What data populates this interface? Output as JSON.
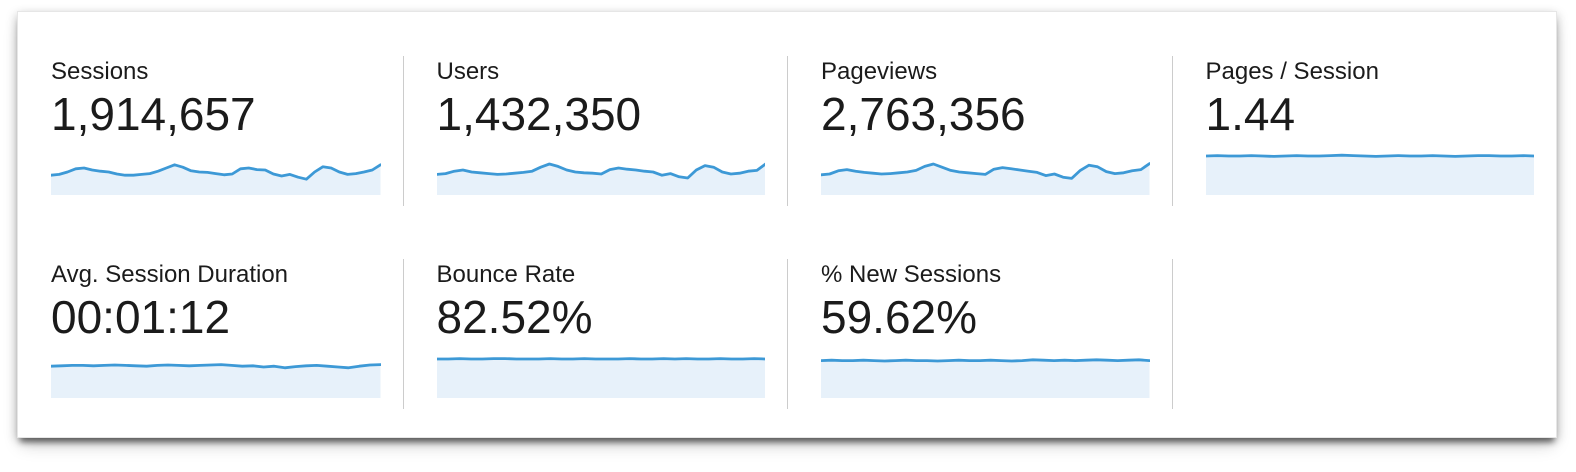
{
  "card": {
    "colors": {
      "spark_line": "#3D99D6",
      "spark_fill": "#E7F1FA",
      "divider": "#CCCCCC",
      "text": "#1B1B1B"
    },
    "metrics": [
      {
        "label": "Sessions",
        "value": "1,914,657",
        "spark": [
          0.42,
          0.44,
          0.5,
          0.58,
          0.6,
          0.55,
          0.52,
          0.5,
          0.45,
          0.42,
          0.42,
          0.44,
          0.46,
          0.52,
          0.6,
          0.68,
          0.62,
          0.53,
          0.5,
          0.49,
          0.46,
          0.43,
          0.45,
          0.58,
          0.6,
          0.56,
          0.55,
          0.45,
          0.4,
          0.44,
          0.37,
          0.32,
          0.5,
          0.63,
          0.6,
          0.5,
          0.44,
          0.46,
          0.5,
          0.55,
          0.68
        ]
      },
      {
        "label": "Users",
        "value": "1,432,350",
        "spark": [
          0.44,
          0.46,
          0.52,
          0.55,
          0.5,
          0.48,
          0.46,
          0.44,
          0.45,
          0.47,
          0.49,
          0.52,
          0.62,
          0.7,
          0.64,
          0.55,
          0.5,
          0.48,
          0.47,
          0.45,
          0.56,
          0.6,
          0.57,
          0.55,
          0.52,
          0.5,
          0.42,
          0.46,
          0.38,
          0.35,
          0.55,
          0.66,
          0.62,
          0.5,
          0.45,
          0.47,
          0.52,
          0.54,
          0.7
        ]
      },
      {
        "label": "Pageviews",
        "value": "2,763,356",
        "spark": [
          0.43,
          0.45,
          0.53,
          0.56,
          0.52,
          0.49,
          0.47,
          0.45,
          0.46,
          0.48,
          0.5,
          0.54,
          0.64,
          0.7,
          0.62,
          0.54,
          0.5,
          0.48,
          0.46,
          0.44,
          0.57,
          0.61,
          0.58,
          0.55,
          0.52,
          0.49,
          0.41,
          0.45,
          0.37,
          0.34,
          0.54,
          0.67,
          0.63,
          0.51,
          0.46,
          0.48,
          0.53,
          0.56,
          0.71
        ]
      },
      {
        "label": "Pages / Session",
        "value": "1.44",
        "spark": [
          0.9,
          0.91,
          0.9,
          0.9,
          0.91,
          0.9,
          0.89,
          0.9,
          0.91,
          0.9,
          0.9,
          0.91,
          0.92,
          0.91,
          0.9,
          0.89,
          0.9,
          0.91,
          0.9,
          0.9,
          0.91,
          0.9,
          0.89,
          0.9,
          0.91,
          0.91,
          0.9,
          0.9,
          0.91,
          0.9
        ]
      },
      {
        "label": "Avg. Session Duration",
        "value": "00:01:12",
        "spark": [
          0.72,
          0.73,
          0.74,
          0.74,
          0.73,
          0.74,
          0.75,
          0.74,
          0.73,
          0.72,
          0.74,
          0.75,
          0.74,
          0.73,
          0.74,
          0.75,
          0.76,
          0.74,
          0.72,
          0.73,
          0.7,
          0.72,
          0.68,
          0.71,
          0.73,
          0.74,
          0.72,
          0.7,
          0.68,
          0.72,
          0.75,
          0.76
        ]
      },
      {
        "label": "Bounce Rate",
        "value": "82.52%",
        "spark": [
          0.9,
          0.9,
          0.91,
          0.9,
          0.9,
          0.91,
          0.91,
          0.9,
          0.9,
          0.9,
          0.91,
          0.9,
          0.9,
          0.91,
          0.9,
          0.9,
          0.9,
          0.91,
          0.9,
          0.9,
          0.91,
          0.9,
          0.91,
          0.9,
          0.9,
          0.91,
          0.9,
          0.9,
          0.91,
          0.9
        ]
      },
      {
        "label": "% New Sessions",
        "value": "59.62%",
        "spark": [
          0.86,
          0.87,
          0.86,
          0.86,
          0.87,
          0.86,
          0.85,
          0.86,
          0.87,
          0.86,
          0.86,
          0.85,
          0.86,
          0.87,
          0.86,
          0.86,
          0.87,
          0.86,
          0.85,
          0.86,
          0.88,
          0.87,
          0.86,
          0.87,
          0.86,
          0.87,
          0.88,
          0.87,
          0.86,
          0.87,
          0.88,
          0.86
        ]
      }
    ]
  },
  "chart_data": [
    {
      "type": "area",
      "title": "Sessions sparkline",
      "series": [
        {
          "name": "Sessions",
          "values": "normalized trend, see card.metrics.0.spark"
        }
      ],
      "legend_position": "none",
      "grid": false
    },
    {
      "type": "area",
      "title": "Users sparkline",
      "series": [
        {
          "name": "Users",
          "values": "normalized trend, see card.metrics.1.spark"
        }
      ],
      "legend_position": "none",
      "grid": false
    },
    {
      "type": "area",
      "title": "Pageviews sparkline",
      "series": [
        {
          "name": "Pageviews",
          "values": "normalized trend, see card.metrics.2.spark"
        }
      ],
      "legend_position": "none",
      "grid": false
    },
    {
      "type": "area",
      "title": "Pages / Session sparkline",
      "series": [
        {
          "name": "Pages / Session",
          "values": "normalized trend, see card.metrics.3.spark"
        }
      ],
      "legend_position": "none",
      "grid": false
    },
    {
      "type": "area",
      "title": "Avg. Session Duration sparkline",
      "series": [
        {
          "name": "Avg. Session Duration",
          "values": "normalized trend, see card.metrics.4.spark"
        }
      ],
      "legend_position": "none",
      "grid": false
    },
    {
      "type": "area",
      "title": "Bounce Rate sparkline",
      "series": [
        {
          "name": "Bounce Rate",
          "values": "normalized trend, see card.metrics.5.spark"
        }
      ],
      "legend_position": "none",
      "grid": false
    },
    {
      "type": "area",
      "title": "% New Sessions sparkline",
      "series": [
        {
          "name": "% New Sessions",
          "values": "normalized trend, see card.metrics.6.spark"
        }
      ],
      "legend_position": "none",
      "grid": false
    }
  ]
}
